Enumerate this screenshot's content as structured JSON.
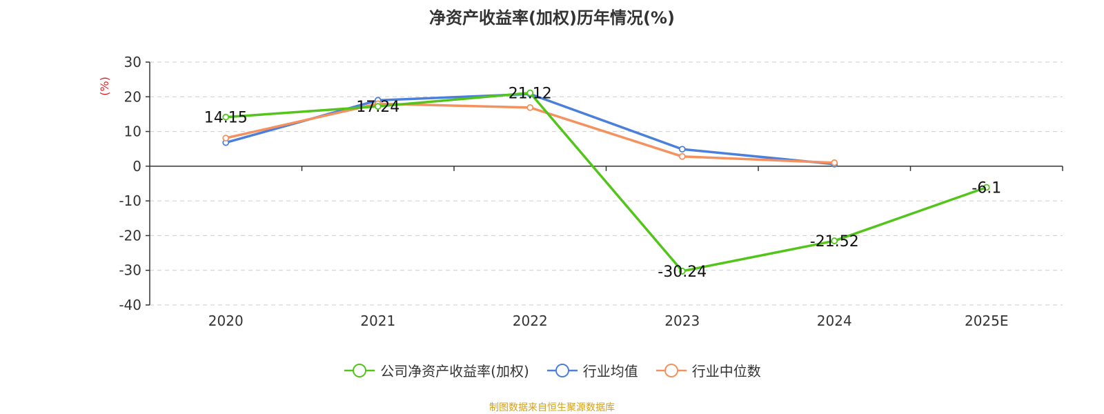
{
  "chart_data": {
    "type": "line",
    "title": "净资产收益率(加权)历年情况(%)",
    "ylabel": "(%)",
    "categories": [
      "2020",
      "2021",
      "2022",
      "2023",
      "2024",
      "2025E"
    ],
    "ylim": [
      -40,
      30
    ],
    "yticks": [
      30,
      20,
      10,
      0,
      -10,
      -20,
      -30,
      -40
    ],
    "grid": true,
    "legend_position": "bottom",
    "series": [
      {
        "name": "公司净资产收益率(加权)",
        "color": "#52c41a",
        "values": [
          14.15,
          17.24,
          21.12,
          -30.24,
          -21.52,
          -6.1
        ],
        "labels": [
          "14.15",
          "17.24",
          "21.12",
          "-30.24",
          "-21.52",
          "-6.1"
        ]
      },
      {
        "name": "行业均值",
        "color": "#4a7fdc",
        "values": [
          6.8,
          19.0,
          20.8,
          4.9,
          0.6,
          null
        ]
      },
      {
        "name": "行业中位数",
        "color": "#f4915e",
        "values": [
          8.1,
          18.0,
          16.9,
          2.8,
          1.0,
          null
        ]
      }
    ]
  },
  "source": "制图数据来自恒生聚源数据库"
}
